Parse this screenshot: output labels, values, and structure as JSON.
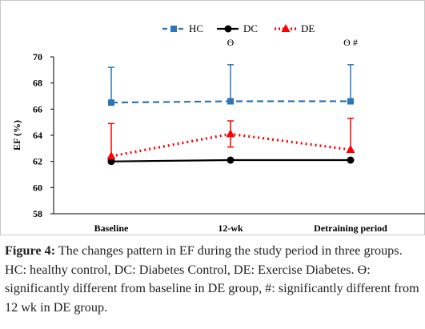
{
  "chart_data": {
    "type": "line",
    "categories": [
      "Baseline",
      "12-wk",
      "Detraining period"
    ],
    "ylabel": "EF (%)",
    "xlabel": "",
    "ylim": [
      58,
      70
    ],
    "yticks": [
      58,
      60,
      62,
      64,
      66,
      68,
      70
    ],
    "legend_position": "top-center",
    "grid": false,
    "series": [
      {
        "name": "HC",
        "values": [
          66.5,
          66.6,
          66.6
        ],
        "error_up": [
          2.7,
          2.8,
          2.8
        ],
        "color": "#2E75B6",
        "marker": "square",
        "line": "dashed"
      },
      {
        "name": "DC",
        "values": [
          62.0,
          62.1,
          62.1
        ],
        "error_up": [
          0,
          0,
          0
        ],
        "color": "#000000",
        "marker": "circle",
        "line": "solid"
      },
      {
        "name": "DE",
        "values": [
          62.4,
          64.1,
          62.9
        ],
        "error_up": [
          2.5,
          1.0,
          2.4
        ],
        "error_down": [
          0,
          1.0,
          0
        ],
        "color": "#FF0000",
        "marker": "triangle",
        "line": "dotted"
      }
    ],
    "annotations": [
      {
        "category_index": 1,
        "text": "ϴ"
      },
      {
        "category_index": 2,
        "text": "ϴ #"
      }
    ]
  },
  "caption": {
    "label": "Figure 4:",
    "text": " The changes pattern in EF during the study period in three groups. HC: healthy control, DC: Diabetes Control, DE: Exercise Diabetes. ϴ: significantly different from baseline in DE group, #: significantly different from 12 wk in DE group."
  }
}
